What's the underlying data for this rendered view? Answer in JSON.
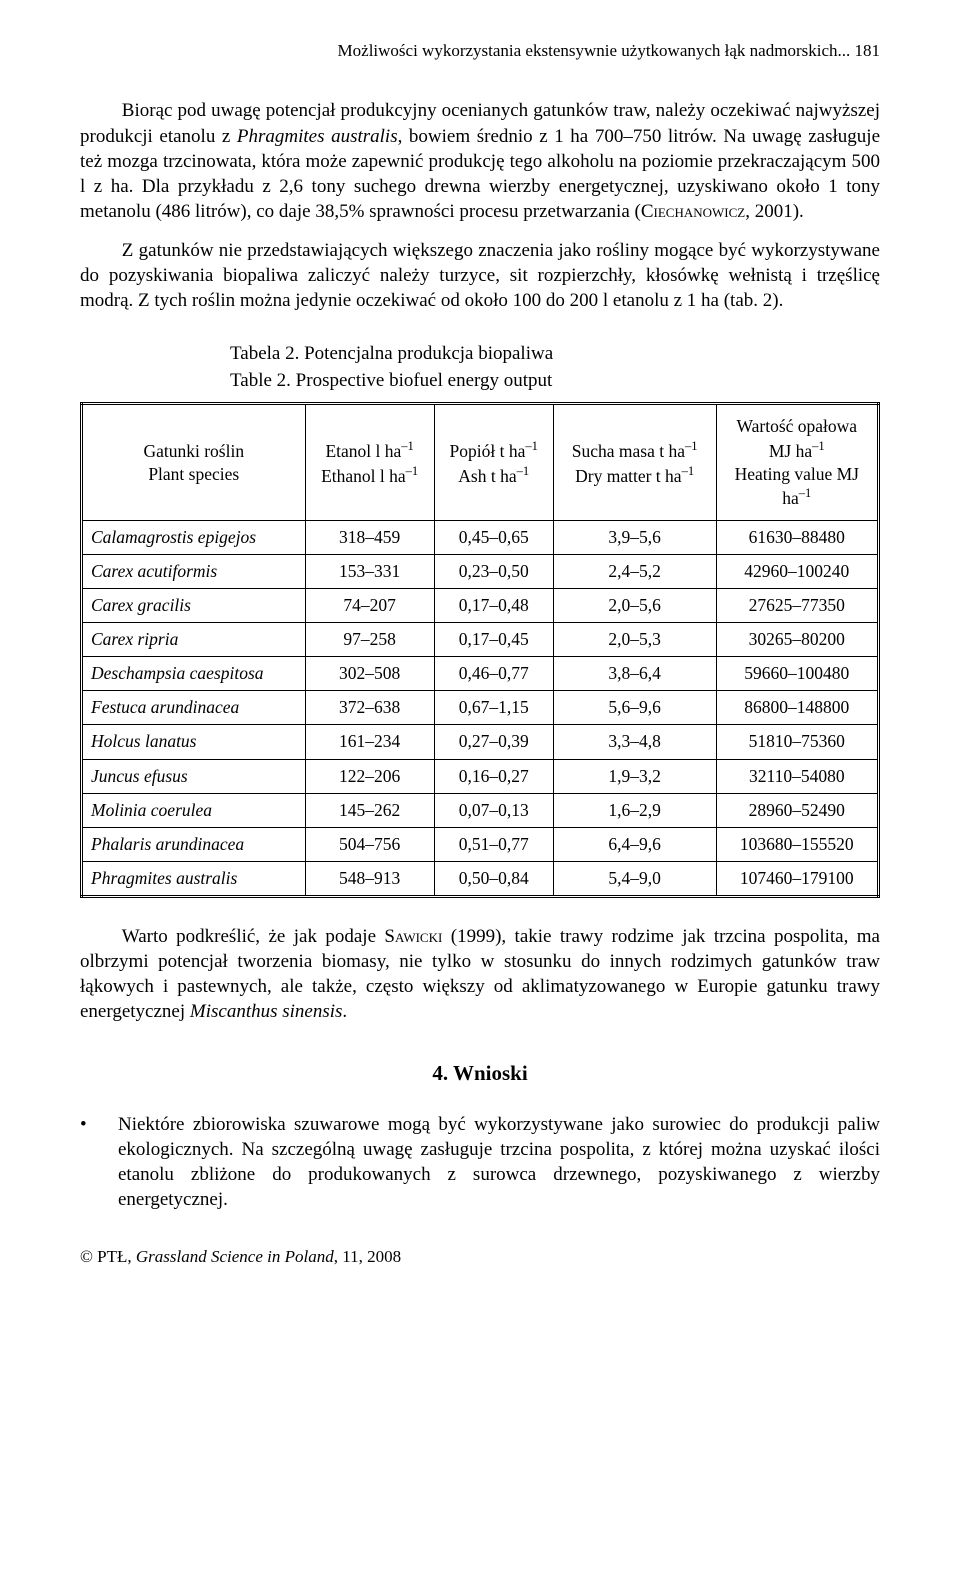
{
  "running_head": "Możliwości wykorzystania ekstensywnie użytkowanych łąk nadmorskich...   181",
  "para1_a": "Biorąc pod uwagę potencjał produkcyjny ocenianych gatunków traw, należy oczekiwać najwyższej produkcji etanolu z ",
  "para1_italic1": "Phragmites australis",
  "para1_b": ", bowiem średnio z 1 ha 700–750 litrów. Na uwagę zasługuje też mozga trzcinowata, która może zapewnić produkcję tego alkoholu na poziomie przekraczającym 500 l z ha. Dla przykładu z 2,6 tony suchego drewna wierzby energetycznej, uzyskiwano około 1 tony metanolu (486 litrów), co daje 38,5% sprawności procesu przetwarzania (",
  "para1_sc1": "Ciechanowicz",
  "para1_c": ", 2001).",
  "para2": "Z gatunków nie przedstawiających większego znaczenia jako rośliny mogące być wykorzystywane do pozyskiwania biopaliwa zaliczyć należy turzyce, sit rozpierzchły, kłosówkę wełnistą i trzęślicę modrą. Z tych roślin można jedynie oczekiwać od około 100 do 200 l etanolu z 1 ha (tab. 2).",
  "table_caption_l1": "Tabela 2. Potencjalna produkcja biopaliwa",
  "table_caption_l2": "Table 2. Prospective biofuel energy output",
  "headers": {
    "c1a": "Gatunki roślin",
    "c1b": "Plant species",
    "c2a": "Etanol l ha",
    "c2b": "Ethanol l ha",
    "c3a": "Popiół t ha",
    "c3b": "Ash t ha",
    "c4a": "Sucha masa t ha",
    "c4b": "Dry matter t ha",
    "c5a": "Wartość opałowa",
    "c5b": "MJ ha",
    "c5c": "Heating value MJ",
    "c5d": "ha"
  },
  "rows": [
    [
      "Calamagrostis epigejos",
      "318–459",
      "0,45–0,65",
      "3,9–5,6",
      "61630–88480"
    ],
    [
      "Carex acutiformis",
      "153–331",
      "0,23–0,50",
      "2,4–5,2",
      "42960–100240"
    ],
    [
      "Carex gracilis",
      "74–207",
      "0,17–0,48",
      "2,0–5,6",
      "27625–77350"
    ],
    [
      "Carex ripria",
      "97–258",
      "0,17–0,45",
      "2,0–5,3",
      "30265–80200"
    ],
    [
      "Deschampsia caespitosa",
      "302–508",
      "0,46–0,77",
      "3,8–6,4",
      "59660–100480"
    ],
    [
      "Festuca arundinacea",
      "372–638",
      "0,67–1,15",
      "5,6–9,6",
      "86800–148800"
    ],
    [
      "Holcus lanatus",
      "161–234",
      "0,27–0,39",
      "3,3–4,8",
      "51810–75360"
    ],
    [
      "Juncus efusus",
      "122–206",
      "0,16–0,27",
      "1,9–3,2",
      "32110–54080"
    ],
    [
      "Molinia coerulea",
      "145–262",
      "0,07–0,13",
      "1,6–2,9",
      "28960–52490"
    ],
    [
      "Phalaris arundinacea",
      "504–756",
      "0,51–0,77",
      "6,4–9,6",
      "103680–155520"
    ],
    [
      "Phragmites australis",
      "548–913",
      "0,50–0,84",
      "5,4–9,0",
      "107460–179100"
    ]
  ],
  "para3_a": "Warto podkreślić, że jak podaje ",
  "para3_sc1": "Sawicki",
  "para3_b": " (1999), takie trawy rodzime jak trzcina pospolita, ma olbrzymi potencjał tworzenia biomasy, nie tylko w stosunku do innych rodzimych gatunków traw łąkowych i pastewnych, ale także, często większy od aklimatyzowanego w Europie gatunku trawy energetycznej ",
  "para3_italic1": "Miscanthus sinensis",
  "para3_c": ".",
  "section_head": "4. Wnioski",
  "bullet_text": "Niektóre zbiorowiska szuwarowe mogą być wykorzystywane jako surowiec do produkcji paliw ekologicznych. Na szczególną uwagę zasługuje trzcina pospolita, z której można uzyskać ilości etanolu zbliżone do produkowanych z surowca drzewnego, pozyskiwanego z wierzby energetycznej.",
  "footer_a": "© PTŁ, ",
  "footer_italic": "Grassland Science in Poland",
  "footer_b": ", 11, 2008"
}
